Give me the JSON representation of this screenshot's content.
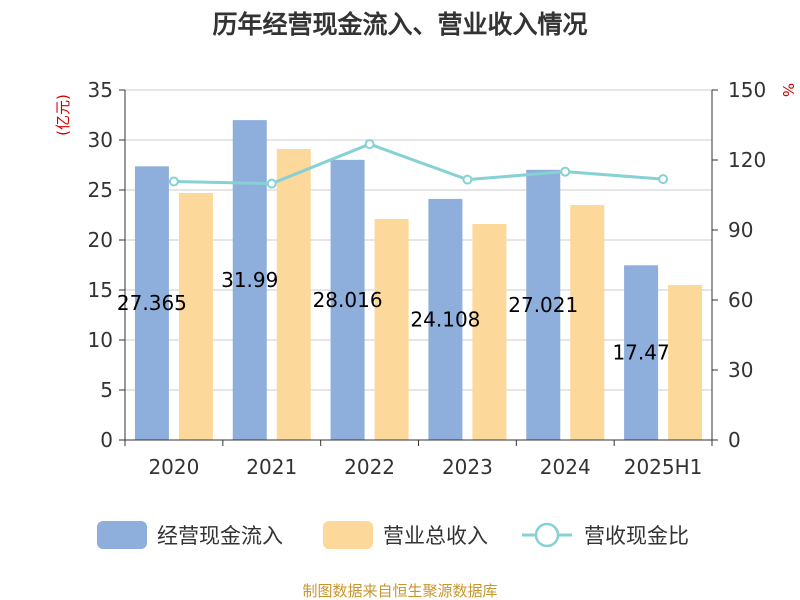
{
  "chart_data": {
    "type": "bar",
    "title": "历年经营现金流入、营业收入情况",
    "categories": [
      "2020",
      "2021",
      "2022",
      "2023",
      "2024",
      "2025H1"
    ],
    "series": [
      {
        "name": "经营现金流入",
        "kind": "bar",
        "axis": "left",
        "color": "#8eaedb",
        "values": [
          27.365,
          31.99,
          28.016,
          24.108,
          27.021,
          17.47
        ],
        "labels": [
          "27.365",
          "31.99",
          "28.016",
          "24.108",
          "27.021",
          "17.47"
        ]
      },
      {
        "name": "营业总收入",
        "kind": "bar",
        "axis": "left",
        "color": "#fdd89b",
        "values": [
          24.7,
          29.1,
          22.1,
          21.6,
          23.5,
          15.5
        ]
      },
      {
        "name": "营收现金比",
        "kind": "line",
        "axis": "right",
        "color": "#86d1d4",
        "values": [
          110.8,
          109.9,
          126.8,
          111.6,
          115.0,
          111.8
        ]
      }
    ],
    "yleft": {
      "label": "(亿元)",
      "min": 0,
      "max": 35,
      "ticks": [
        "0",
        "5",
        "10",
        "15",
        "20",
        "25",
        "30",
        "35"
      ]
    },
    "yright": {
      "label": "%",
      "min": 0,
      "max": 150,
      "ticks": [
        "0",
        "30",
        "60",
        "90",
        "120",
        "150"
      ]
    },
    "grid": true,
    "legend": "bottom",
    "source": "制图数据来自恒生聚源数据库"
  }
}
